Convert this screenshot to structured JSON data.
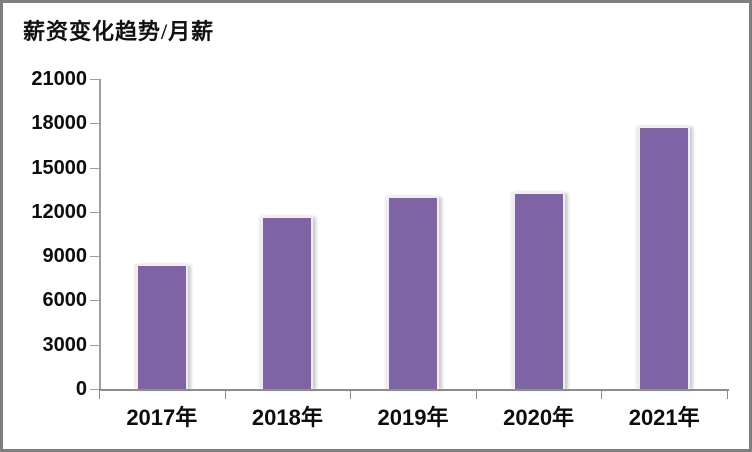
{
  "window": {
    "background_color": "#ffffff",
    "frame_border_color": "#7f7f7f"
  },
  "chart_data": {
    "type": "bar",
    "title": "薪资变化趋势/月薪",
    "categories": [
      "2017年",
      "2018年",
      "2019年",
      "2020年",
      "2021年"
    ],
    "values": [
      8450,
      11750,
      13050,
      13350,
      17850
    ],
    "xlabel": "",
    "ylabel": "",
    "ylim": [
      0,
      21000
    ],
    "ytick_step": 3000,
    "ytick_labels": [
      "0",
      "3000",
      "6000",
      "9000",
      "12000",
      "15000",
      "18000",
      "21000"
    ],
    "grid": false,
    "legend_position": "none",
    "bar_color": "#7E64A4",
    "bar_edge_color": "#EFEDF3",
    "axis_color": "#9E9E9E",
    "text_color": "#0D0D0D"
  }
}
